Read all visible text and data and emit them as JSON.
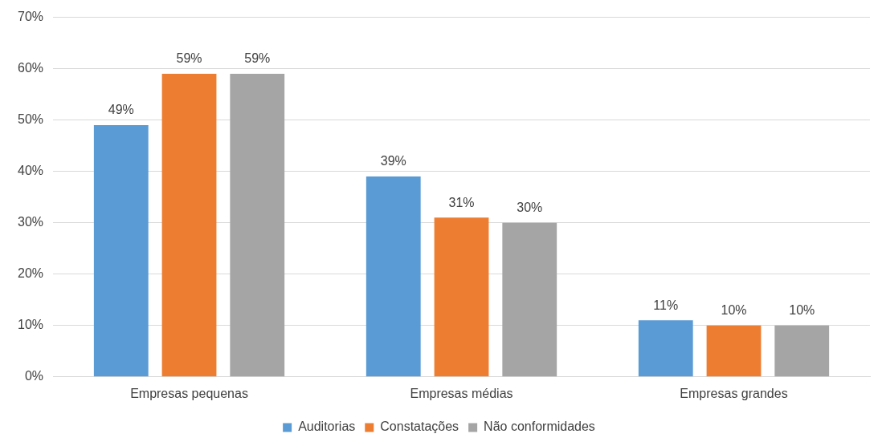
{
  "chart_data": {
    "type": "bar",
    "categories": [
      "Empresas pequenas",
      "Empresas médias",
      "Empresas grandes"
    ],
    "series": [
      {
        "name": "Auditorias",
        "color": "#5b9bd5",
        "values": [
          49,
          39,
          11
        ],
        "value_labels": [
          "49%",
          "39%",
          "11%"
        ]
      },
      {
        "name": "Constatações",
        "color": "#ed7d31",
        "values": [
          59,
          31,
          10
        ],
        "value_labels": [
          "59%",
          "31%",
          "10%"
        ]
      },
      {
        "name": "Não conformidades",
        "color": "#a5a5a5",
        "values": [
          59,
          30,
          10
        ],
        "value_labels": [
          "59%",
          "30%",
          "10%"
        ]
      }
    ],
    "ylim": [
      0,
      70
    ],
    "yticks": [
      {
        "value": 0,
        "label": "0%"
      },
      {
        "value": 10,
        "label": "10%"
      },
      {
        "value": 20,
        "label": "20%"
      },
      {
        "value": 30,
        "label": "30%"
      },
      {
        "value": 40,
        "label": "40%"
      },
      {
        "value": 50,
        "label": "50%"
      },
      {
        "value": 60,
        "label": "60%"
      },
      {
        "value": 70,
        "label": "70%"
      }
    ],
    "grid": "y",
    "legend": "bottom"
  }
}
